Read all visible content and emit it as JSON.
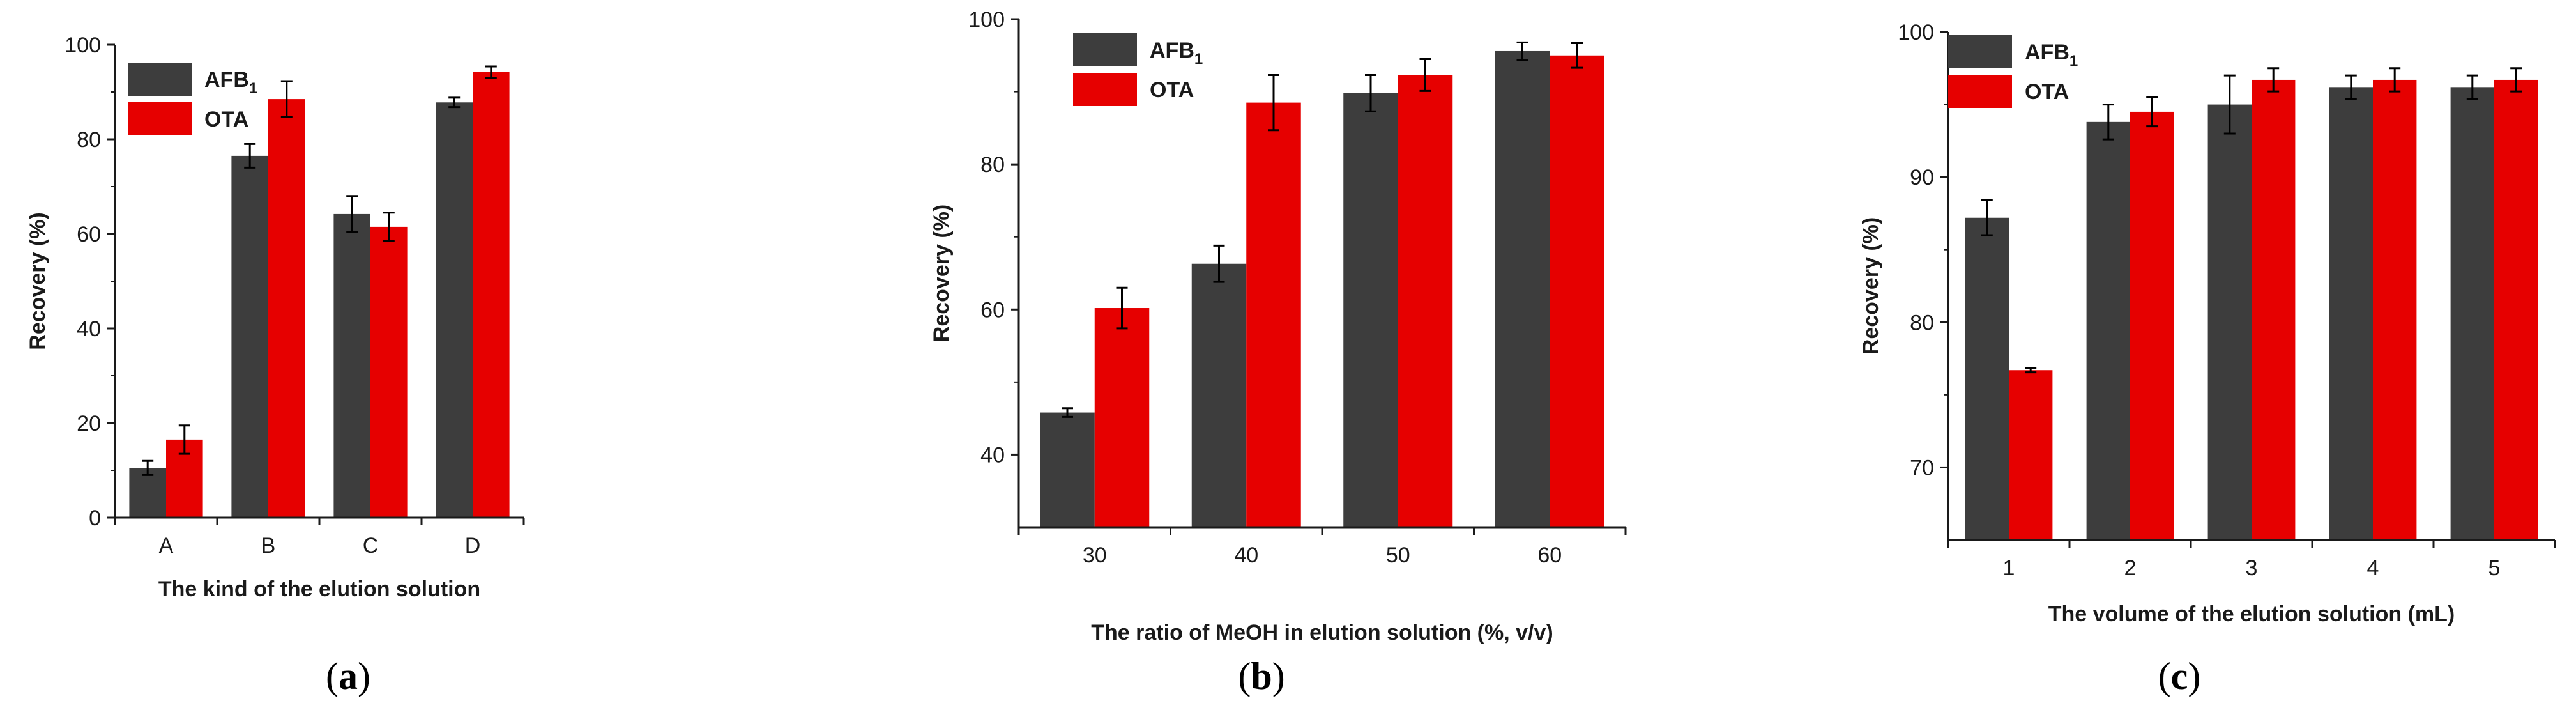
{
  "colors": {
    "AFB1": "#3d3d3d",
    "OTA": "#e60000",
    "axis": "#1a1a1a"
  },
  "chart_data": [
    {
      "type": "bar",
      "panel": "a",
      "categories": [
        "A",
        "B",
        "C",
        "D"
      ],
      "series": [
        {
          "name": "AFB",
          "subscript": "1",
          "values": [
            10.5,
            76.5,
            64.2,
            87.8
          ],
          "errors": [
            1.5,
            2.5,
            3.8,
            1.0
          ]
        },
        {
          "name": "OTA",
          "values": [
            16.5,
            88.5,
            61.5,
            94.2
          ],
          "errors": [
            3.0,
            3.8,
            3.0,
            1.2
          ]
        }
      ],
      "ylim": [
        0,
        100
      ],
      "yticks": [
        0,
        20,
        40,
        60,
        80,
        100
      ],
      "ylabel": "Recovery (%)",
      "xlabel": "The kind of the elution solution",
      "legend": "top-left"
    },
    {
      "type": "bar",
      "panel": "b",
      "categories": [
        "30",
        "40",
        "50",
        "60"
      ],
      "series": [
        {
          "name": "AFB",
          "subscript": "1",
          "values": [
            45.8,
            66.3,
            89.8,
            95.6
          ],
          "errors": [
            0.6,
            2.5,
            2.5,
            1.2
          ]
        },
        {
          "name": "OTA",
          "values": [
            60.2,
            88.5,
            92.3,
            95.0
          ],
          "errors": [
            2.8,
            3.8,
            2.2,
            1.7
          ]
        }
      ],
      "ylim": [
        30,
        100
      ],
      "yticks": [
        40,
        60,
        80,
        100
      ],
      "ylabel": "Recovery (%)",
      "xlabel": "The ratio of MeOH in elution solution (%, v/v)",
      "legend": "top-left"
    },
    {
      "type": "bar",
      "panel": "c",
      "categories": [
        "1",
        "2",
        "3",
        "4",
        "5"
      ],
      "series": [
        {
          "name": "AFB",
          "subscript": "1",
          "values": [
            87.2,
            93.8,
            95.0,
            96.2,
            96.2
          ],
          "errors": [
            1.2,
            1.2,
            2.0,
            0.8,
            0.8
          ]
        },
        {
          "name": "OTA",
          "values": [
            76.7,
            94.5,
            96.7,
            96.7,
            96.7
          ],
          "errors": [
            0.15,
            1.0,
            0.8,
            0.8,
            0.8
          ]
        }
      ],
      "ylim": [
        65,
        100
      ],
      "yticks": [
        70,
        80,
        90,
        100
      ],
      "ylabel": "Recovery (%)",
      "xlabel": "The volume of the elution solution (mL)",
      "legend": "top-left"
    }
  ]
}
